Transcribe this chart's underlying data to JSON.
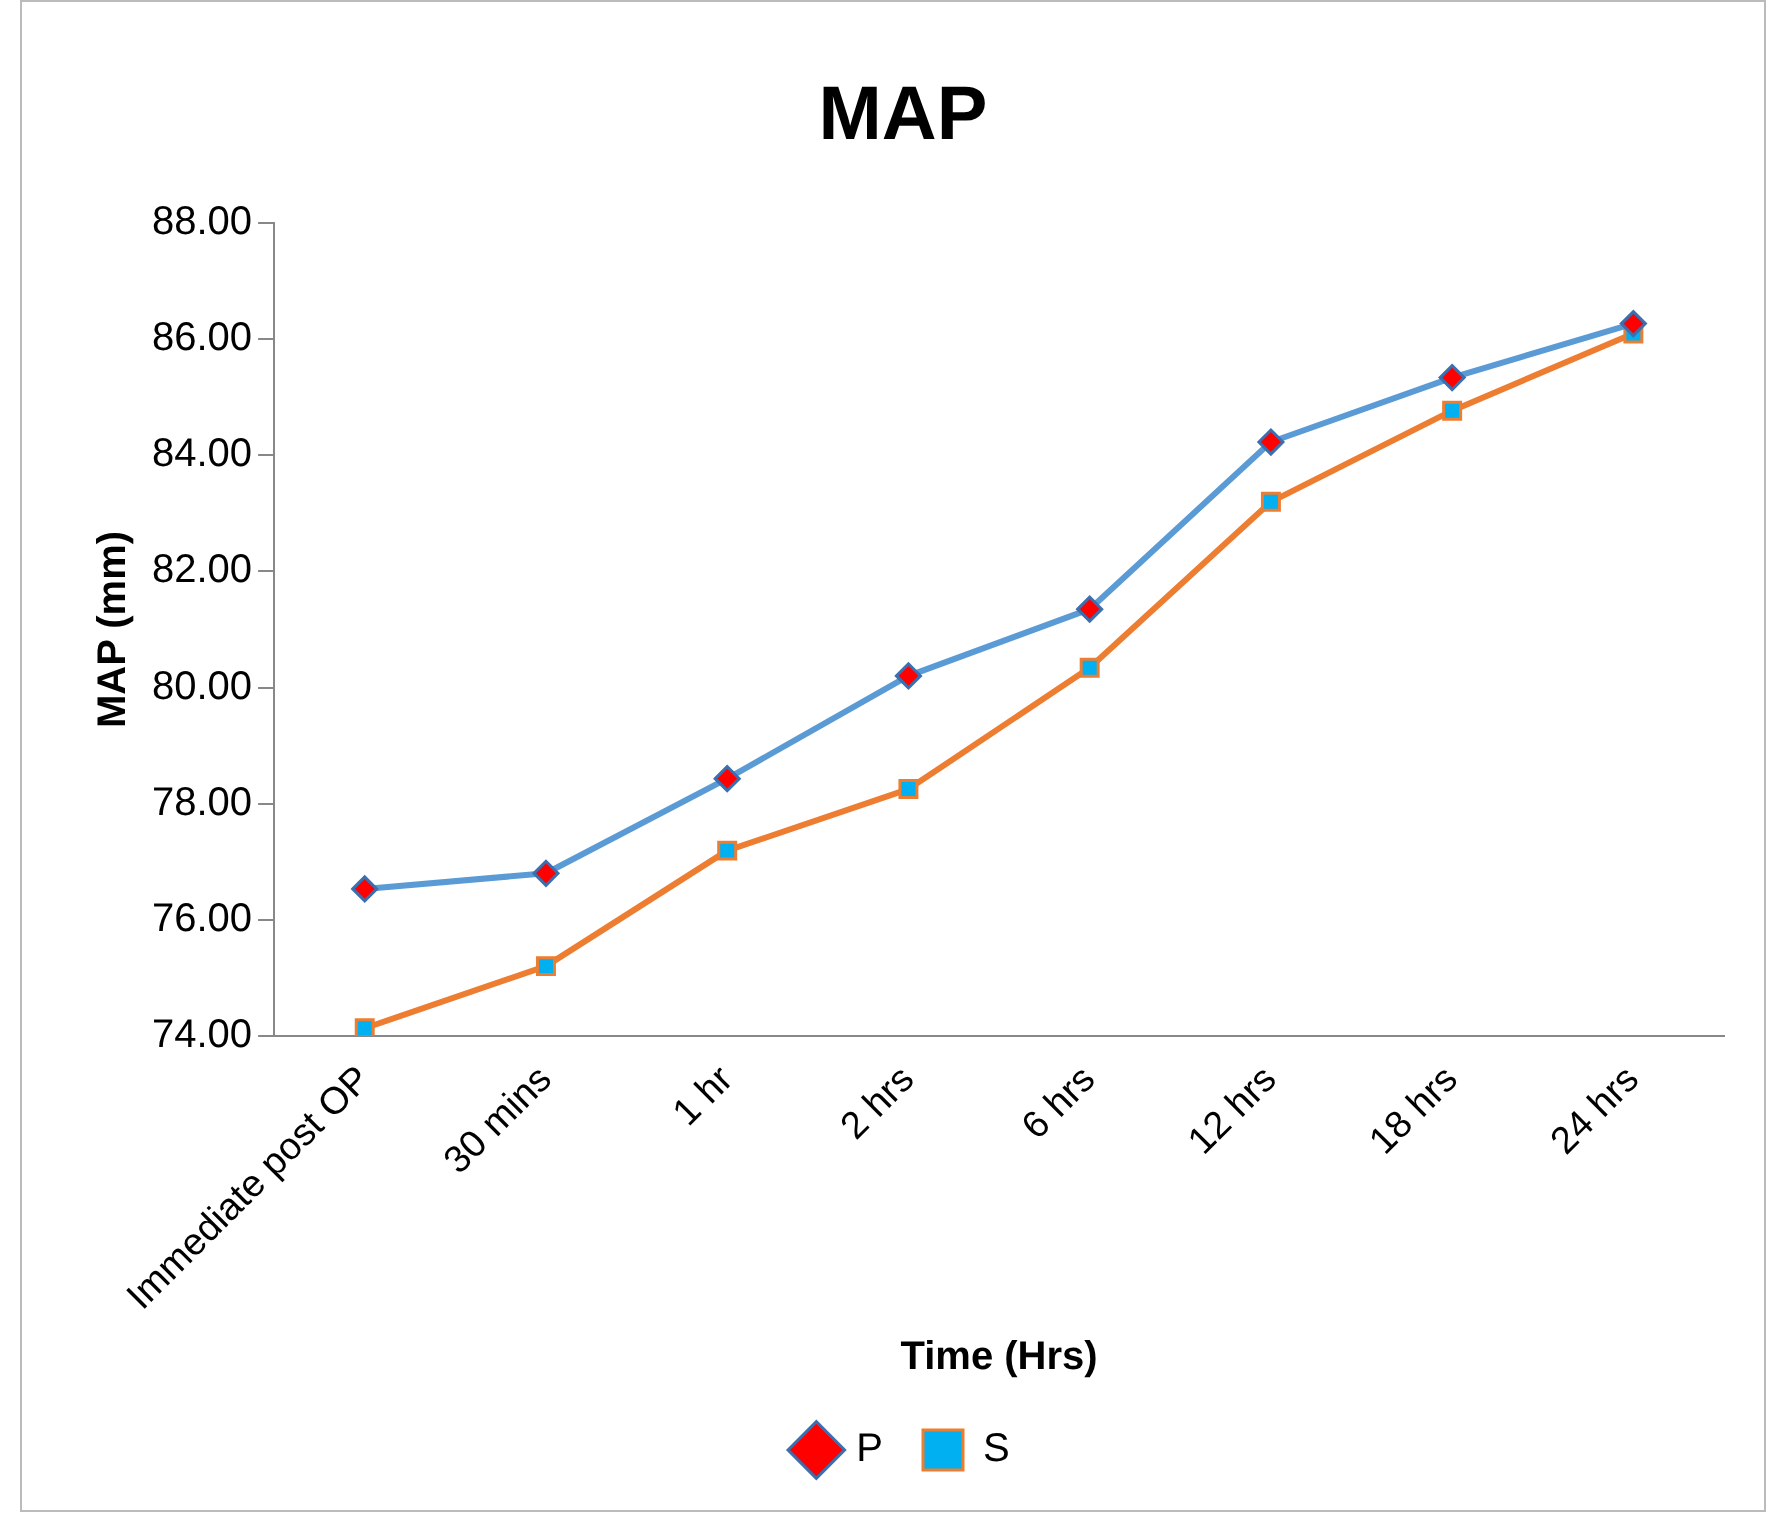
{
  "chart_data": {
    "type": "line",
    "title": "MAP",
    "xlabel": "Time (Hrs)",
    "ylabel": "MAP (mm)",
    "categories": [
      "Immediate post OP",
      "30 mins",
      "1 hr",
      "2 hrs",
      "6 hrs",
      "12 hrs",
      "18 hrs",
      "24 hrs"
    ],
    "series": [
      {
        "name": "P",
        "color": "#5b9bd5",
        "marker": "diamond",
        "colors": [
          "#ff0000",
          "#ff0000",
          "#ff0000",
          "#ff0000",
          "#ff0000",
          "#ff0000",
          "#ff0000",
          "#ff0000"
        ],
        "values": [
          76.53,
          76.8,
          78.43,
          80.2,
          81.35,
          84.23,
          85.34,
          86.27
        ]
      },
      {
        "name": "S",
        "color": "#ed7d31",
        "marker": "square",
        "colors": [
          "#00b0f0",
          "#00b0f0",
          "#00b0f0",
          "#00b0f0",
          "#00b0f0",
          "#00b0f0",
          "#00b0f0",
          "#00b0f0"
        ],
        "values": [
          74.13,
          75.2,
          77.19,
          78.25,
          80.34,
          83.2,
          84.77,
          86.1
        ]
      }
    ],
    "ylim": [
      74,
      88
    ],
    "yticks": [
      {
        "value": 74,
        "label": "74.00"
      },
      {
        "value": 76,
        "label": "76.00"
      },
      {
        "value": 78,
        "label": "78.00"
      },
      {
        "value": 80,
        "label": "80.00"
      },
      {
        "value": 82,
        "label": "82.00"
      },
      {
        "value": 84,
        "label": "84.00"
      },
      {
        "value": 86,
        "label": "86.00"
      },
      {
        "value": 88,
        "label": "88.00"
      }
    ],
    "grid": false,
    "legend": "bottom",
    "line_style": "solid"
  }
}
